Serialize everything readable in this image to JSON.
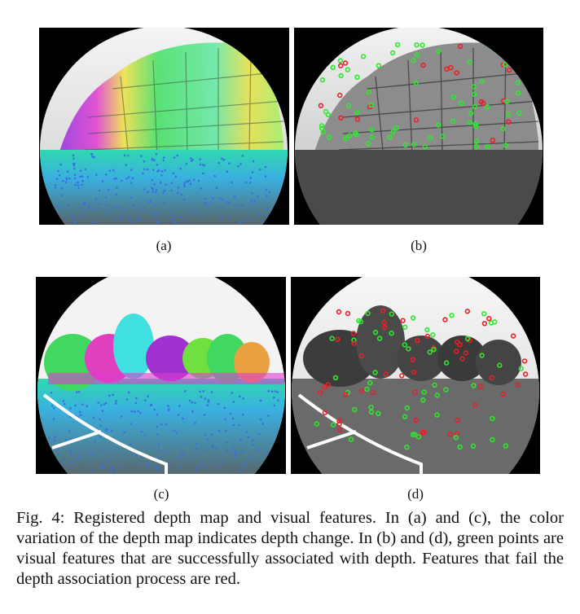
{
  "figure": {
    "panels": [
      {
        "label": "(a)",
        "kind": "depth-map",
        "scene": "building"
      },
      {
        "label": "(b)",
        "kind": "features",
        "scene": "building"
      },
      {
        "label": "(c)",
        "kind": "depth-map",
        "scene": "park"
      },
      {
        "label": "(d)",
        "kind": "features",
        "scene": "park"
      }
    ],
    "caption": "Fig. 4: Registered depth map and visual features. In (a) and (c), the color variation of the depth map indicates depth change. In (b) and (d), green points are visual features that are successfully associated with depth. Features that fail the depth association process are red.",
    "colors": {
      "associated_feature": "#2ee82e",
      "failed_feature": "#e8202a",
      "depth_near": "#3a6fe0",
      "depth_far": "#9b2bd8"
    }
  }
}
